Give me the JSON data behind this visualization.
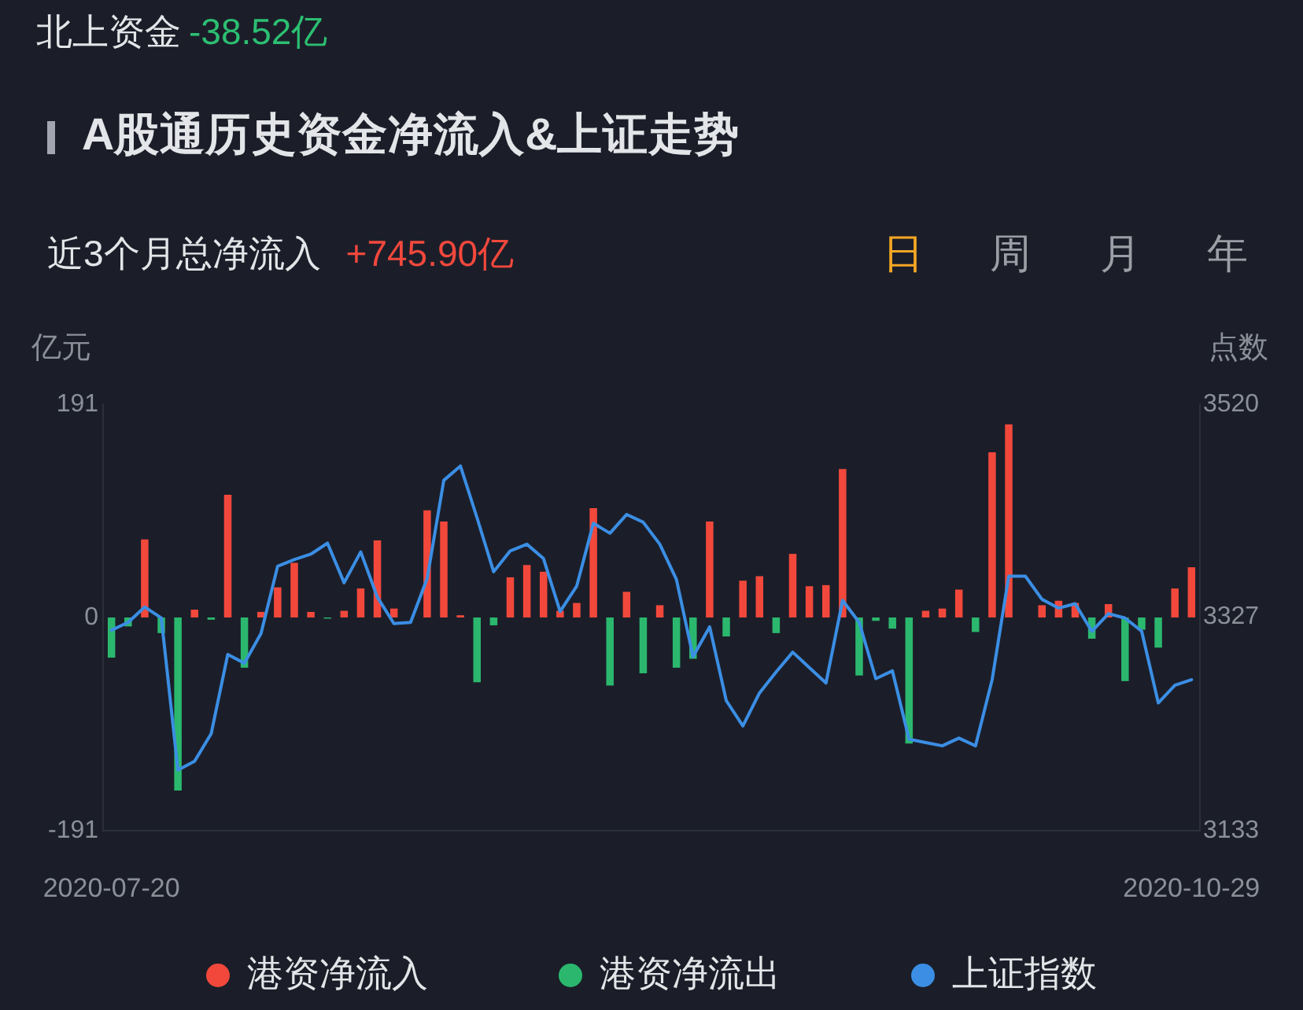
{
  "chart_data": {
    "type": "bar",
    "title": "A股通历史资金净流入&上证走势",
    "annotations": [
      "北上资金",
      "-38.52亿",
      "近3个月总净流入",
      "+745.90亿",
      "日",
      "周",
      "月",
      "年"
    ],
    "ylabel": "亿元",
    "y2label": "点数",
    "categories": [
      "2020-07-20",
      null,
      null,
      null,
      null,
      null,
      null,
      null,
      null,
      null,
      null,
      null,
      null,
      null,
      null,
      null,
      null,
      null,
      null,
      null,
      null,
      null,
      null,
      null,
      null,
      null,
      null,
      null,
      null,
      null,
      null,
      null,
      null,
      null,
      null,
      null,
      null,
      null,
      null,
      null,
      null,
      null,
      null,
      null,
      null,
      null,
      null,
      null,
      null,
      null,
      null,
      null,
      null,
      null,
      null,
      null,
      null,
      null,
      null,
      null,
      null,
      null,
      null,
      null,
      null,
      "2020-10-29"
    ],
    "series": [
      {
        "name": "港资净流入",
        "color": "#f2483c",
        "values": [
          null,
          null,
          70,
          null,
          null,
          7,
          null,
          110,
          null,
          5,
          27,
          49,
          5,
          null,
          6,
          26,
          69,
          8,
          null,
          96,
          86,
          2,
          null,
          null,
          36,
          47,
          41,
          6,
          13,
          98,
          null,
          23,
          null,
          11,
          null,
          null,
          86,
          null,
          33,
          37,
          null,
          57,
          28,
          29,
          133,
          null,
          null,
          null,
          null,
          6,
          8,
          25,
          null,
          148,
          173,
          null,
          11,
          15,
          13,
          null,
          12,
          null,
          null,
          null,
          26,
          45
        ]
      },
      {
        "name": "港资净流出",
        "color": "#2bb86e",
        "values": [
          -36,
          -8,
          null,
          -14,
          -155,
          null,
          -2,
          null,
          -45,
          null,
          null,
          null,
          null,
          -1,
          null,
          null,
          null,
          null,
          null,
          null,
          null,
          null,
          -58,
          -7,
          null,
          null,
          null,
          null,
          null,
          null,
          -61,
          null,
          -50,
          null,
          -45,
          -37,
          null,
          -17,
          null,
          null,
          -14,
          null,
          null,
          null,
          null,
          -52,
          -3,
          -10,
          -113,
          null,
          null,
          null,
          -13,
          null,
          null,
          null,
          null,
          null,
          null,
          -19,
          null,
          -57,
          -11,
          -27,
          null,
          null
        ]
      },
      {
        "name": "上证指数",
        "type": "line",
        "axis": "y2",
        "color": "#3b8ee4",
        "values": [
          3315,
          3322,
          3336,
          3326,
          3188,
          3196,
          3221,
          3293,
          3285,
          3312,
          3373,
          3379,
          3384,
          3394,
          3358,
          3386,
          3345,
          3321,
          3322,
          3362,
          3451,
          3464,
          3417,
          3368,
          3387,
          3393,
          3380,
          3332,
          3355,
          3412,
          3403,
          3420,
          3413,
          3393,
          3361,
          3291,
          3318,
          3251,
          3228,
          3258,
          3277,
          3295,
          3281,
          3267,
          3342,
          3322,
          3271,
          3278,
          3216,
          3213,
          3210,
          3217,
          3210,
          3270,
          3364,
          3364,
          3343,
          3335,
          3339,
          3314,
          3330,
          3326,
          3314,
          3249,
          3265,
          3270
        ]
      }
    ],
    "stacked": true,
    "ylim": [
      -191,
      191
    ],
    "yticks": [
      -191,
      0,
      191
    ],
    "y2lim": [
      3133,
      3520
    ],
    "y2ticks": [
      3133,
      3327,
      3520
    ],
    "grid": false,
    "legend": "bottom",
    "marker": "none",
    "line_style": "solid"
  }
}
